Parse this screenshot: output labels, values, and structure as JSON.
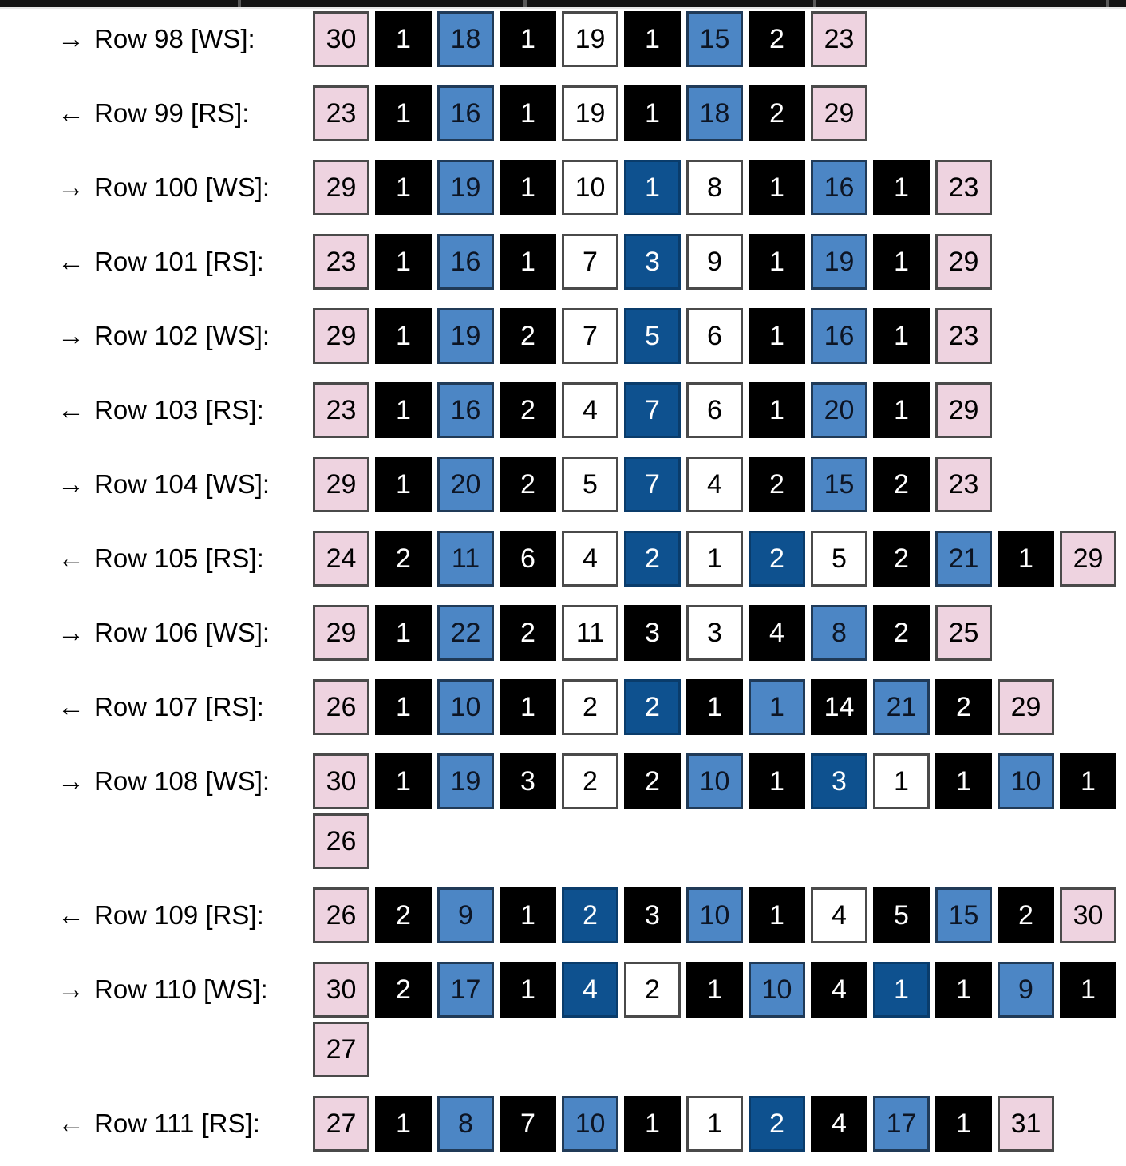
{
  "palette": {
    "pink": "#eed3e0",
    "black": "#000000",
    "blue": "#4c86c5",
    "darkblue": "#0e518f",
    "white": "#ffffff",
    "cell_border": "#4a4a4a",
    "text_on_dark": "#ffffff",
    "text_on_light": "#000000",
    "top_strip": "#151515"
  },
  "top_strip": {
    "separator_positions": [
      298,
      656,
      1019,
      1386
    ]
  },
  "rows": [
    {
      "id": "98",
      "direction": "→",
      "label": "Row 98 [WS]:",
      "cells": [
        {
          "value": "30",
          "color": "pink"
        },
        {
          "value": "1",
          "color": "black"
        },
        {
          "value": "18",
          "color": "blue"
        },
        {
          "value": "1",
          "color": "black"
        },
        {
          "value": "19",
          "color": "white"
        },
        {
          "value": "1",
          "color": "black"
        },
        {
          "value": "15",
          "color": "blue"
        },
        {
          "value": "2",
          "color": "black"
        },
        {
          "value": "23",
          "color": "pink"
        }
      ]
    },
    {
      "id": "99",
      "direction": "←",
      "label": "Row 99 [RS]:",
      "cells": [
        {
          "value": "23",
          "color": "pink"
        },
        {
          "value": "1",
          "color": "black"
        },
        {
          "value": "16",
          "color": "blue"
        },
        {
          "value": "1",
          "color": "black"
        },
        {
          "value": "19",
          "color": "white"
        },
        {
          "value": "1",
          "color": "black"
        },
        {
          "value": "18",
          "color": "blue"
        },
        {
          "value": "2",
          "color": "black"
        },
        {
          "value": "29",
          "color": "pink"
        }
      ]
    },
    {
      "id": "100",
      "direction": "→",
      "label": "Row 100 [WS]:",
      "cells": [
        {
          "value": "29",
          "color": "pink"
        },
        {
          "value": "1",
          "color": "black"
        },
        {
          "value": "19",
          "color": "blue"
        },
        {
          "value": "1",
          "color": "black"
        },
        {
          "value": "10",
          "color": "white"
        },
        {
          "value": "1",
          "color": "darkblue"
        },
        {
          "value": "8",
          "color": "white"
        },
        {
          "value": "1",
          "color": "black"
        },
        {
          "value": "16",
          "color": "blue"
        },
        {
          "value": "1",
          "color": "black"
        },
        {
          "value": "23",
          "color": "pink"
        }
      ]
    },
    {
      "id": "101",
      "direction": "←",
      "label": "Row 101 [RS]:",
      "cells": [
        {
          "value": "23",
          "color": "pink"
        },
        {
          "value": "1",
          "color": "black"
        },
        {
          "value": "16",
          "color": "blue"
        },
        {
          "value": "1",
          "color": "black"
        },
        {
          "value": "7",
          "color": "white"
        },
        {
          "value": "3",
          "color": "darkblue"
        },
        {
          "value": "9",
          "color": "white"
        },
        {
          "value": "1",
          "color": "black"
        },
        {
          "value": "19",
          "color": "blue"
        },
        {
          "value": "1",
          "color": "black"
        },
        {
          "value": "29",
          "color": "pink"
        }
      ]
    },
    {
      "id": "102",
      "direction": "→",
      "label": "Row 102 [WS]:",
      "cells": [
        {
          "value": "29",
          "color": "pink"
        },
        {
          "value": "1",
          "color": "black"
        },
        {
          "value": "19",
          "color": "blue"
        },
        {
          "value": "2",
          "color": "black"
        },
        {
          "value": "7",
          "color": "white"
        },
        {
          "value": "5",
          "color": "darkblue"
        },
        {
          "value": "6",
          "color": "white"
        },
        {
          "value": "1",
          "color": "black"
        },
        {
          "value": "16",
          "color": "blue"
        },
        {
          "value": "1",
          "color": "black"
        },
        {
          "value": "23",
          "color": "pink"
        }
      ]
    },
    {
      "id": "103",
      "direction": "←",
      "label": "Row 103 [RS]:",
      "cells": [
        {
          "value": "23",
          "color": "pink"
        },
        {
          "value": "1",
          "color": "black"
        },
        {
          "value": "16",
          "color": "blue"
        },
        {
          "value": "2",
          "color": "black"
        },
        {
          "value": "4",
          "color": "white"
        },
        {
          "value": "7",
          "color": "darkblue"
        },
        {
          "value": "6",
          "color": "white"
        },
        {
          "value": "1",
          "color": "black"
        },
        {
          "value": "20",
          "color": "blue"
        },
        {
          "value": "1",
          "color": "black"
        },
        {
          "value": "29",
          "color": "pink"
        }
      ]
    },
    {
      "id": "104",
      "direction": "→",
      "label": "Row 104 [WS]:",
      "cells": [
        {
          "value": "29",
          "color": "pink"
        },
        {
          "value": "1",
          "color": "black"
        },
        {
          "value": "20",
          "color": "blue"
        },
        {
          "value": "2",
          "color": "black"
        },
        {
          "value": "5",
          "color": "white"
        },
        {
          "value": "7",
          "color": "darkblue"
        },
        {
          "value": "4",
          "color": "white"
        },
        {
          "value": "2",
          "color": "black"
        },
        {
          "value": "15",
          "color": "blue"
        },
        {
          "value": "2",
          "color": "black"
        },
        {
          "value": "23",
          "color": "pink"
        }
      ]
    },
    {
      "id": "105",
      "direction": "←",
      "label": "Row 105 [RS]:",
      "cells": [
        {
          "value": "24",
          "color": "pink"
        },
        {
          "value": "2",
          "color": "black"
        },
        {
          "value": "11",
          "color": "blue"
        },
        {
          "value": "6",
          "color": "black"
        },
        {
          "value": "4",
          "color": "white"
        },
        {
          "value": "2",
          "color": "darkblue"
        },
        {
          "value": "1",
          "color": "white"
        },
        {
          "value": "2",
          "color": "darkblue"
        },
        {
          "value": "5",
          "color": "white"
        },
        {
          "value": "2",
          "color": "black"
        },
        {
          "value": "21",
          "color": "blue"
        },
        {
          "value": "1",
          "color": "black"
        },
        {
          "value": "29",
          "color": "pink"
        }
      ]
    },
    {
      "id": "106",
      "direction": "→",
      "label": "Row 106 [WS]:",
      "cells": [
        {
          "value": "29",
          "color": "pink"
        },
        {
          "value": "1",
          "color": "black"
        },
        {
          "value": "22",
          "color": "blue"
        },
        {
          "value": "2",
          "color": "black"
        },
        {
          "value": "11",
          "color": "white"
        },
        {
          "value": "3",
          "color": "black"
        },
        {
          "value": "3",
          "color": "white"
        },
        {
          "value": "4",
          "color": "black"
        },
        {
          "value": "8",
          "color": "blue"
        },
        {
          "value": "2",
          "color": "black"
        },
        {
          "value": "25",
          "color": "pink"
        }
      ]
    },
    {
      "id": "107",
      "direction": "←",
      "label": "Row 107 [RS]:",
      "cells": [
        {
          "value": "26",
          "color": "pink"
        },
        {
          "value": "1",
          "color": "black"
        },
        {
          "value": "10",
          "color": "blue"
        },
        {
          "value": "1",
          "color": "black"
        },
        {
          "value": "2",
          "color": "white"
        },
        {
          "value": "2",
          "color": "darkblue"
        },
        {
          "value": "1",
          "color": "black"
        },
        {
          "value": "1",
          "color": "blue"
        },
        {
          "value": "14",
          "color": "black"
        },
        {
          "value": "21",
          "color": "blue"
        },
        {
          "value": "2",
          "color": "black"
        },
        {
          "value": "29",
          "color": "pink"
        }
      ]
    },
    {
      "id": "108",
      "direction": "→",
      "label": "Row 108 [WS]:",
      "cells": [
        {
          "value": "30",
          "color": "pink"
        },
        {
          "value": "1",
          "color": "black"
        },
        {
          "value": "19",
          "color": "blue"
        },
        {
          "value": "3",
          "color": "black"
        },
        {
          "value": "2",
          "color": "white"
        },
        {
          "value": "2",
          "color": "black"
        },
        {
          "value": "10",
          "color": "blue"
        },
        {
          "value": "1",
          "color": "black"
        },
        {
          "value": "3",
          "color": "darkblue"
        },
        {
          "value": "1",
          "color": "white"
        },
        {
          "value": "1",
          "color": "black"
        },
        {
          "value": "10",
          "color": "blue"
        },
        {
          "value": "1",
          "color": "black"
        }
      ],
      "wrap_cells": [
        {
          "value": "26",
          "color": "pink"
        }
      ]
    },
    {
      "id": "109",
      "direction": "←",
      "label": "Row 109 [RS]:",
      "cells": [
        {
          "value": "26",
          "color": "pink"
        },
        {
          "value": "2",
          "color": "black"
        },
        {
          "value": "9",
          "color": "blue"
        },
        {
          "value": "1",
          "color": "black"
        },
        {
          "value": "2",
          "color": "darkblue"
        },
        {
          "value": "3",
          "color": "black"
        },
        {
          "value": "10",
          "color": "blue"
        },
        {
          "value": "1",
          "color": "black"
        },
        {
          "value": "4",
          "color": "white"
        },
        {
          "value": "5",
          "color": "black"
        },
        {
          "value": "15",
          "color": "blue"
        },
        {
          "value": "2",
          "color": "black"
        },
        {
          "value": "30",
          "color": "pink"
        }
      ]
    },
    {
      "id": "110",
      "direction": "→",
      "label": "Row 110 [WS]:",
      "cells": [
        {
          "value": "30",
          "color": "pink"
        },
        {
          "value": "2",
          "color": "black"
        },
        {
          "value": "17",
          "color": "blue"
        },
        {
          "value": "1",
          "color": "black"
        },
        {
          "value": "4",
          "color": "darkblue"
        },
        {
          "value": "2",
          "color": "white"
        },
        {
          "value": "1",
          "color": "black"
        },
        {
          "value": "10",
          "color": "blue"
        },
        {
          "value": "4",
          "color": "black"
        },
        {
          "value": "1",
          "color": "darkblue"
        },
        {
          "value": "1",
          "color": "black"
        },
        {
          "value": "9",
          "color": "blue"
        },
        {
          "value": "1",
          "color": "black"
        }
      ],
      "wrap_cells": [
        {
          "value": "27",
          "color": "pink"
        }
      ]
    },
    {
      "id": "111",
      "direction": "←",
      "label": "Row 111 [RS]:",
      "cells": [
        {
          "value": "27",
          "color": "pink"
        },
        {
          "value": "1",
          "color": "black"
        },
        {
          "value": "8",
          "color": "blue"
        },
        {
          "value": "7",
          "color": "black"
        },
        {
          "value": "10",
          "color": "blue"
        },
        {
          "value": "1",
          "color": "black"
        },
        {
          "value": "1",
          "color": "white"
        },
        {
          "value": "2",
          "color": "darkblue"
        },
        {
          "value": "4",
          "color": "black"
        },
        {
          "value": "17",
          "color": "blue"
        },
        {
          "value": "1",
          "color": "black"
        },
        {
          "value": "31",
          "color": "pink"
        }
      ]
    }
  ]
}
